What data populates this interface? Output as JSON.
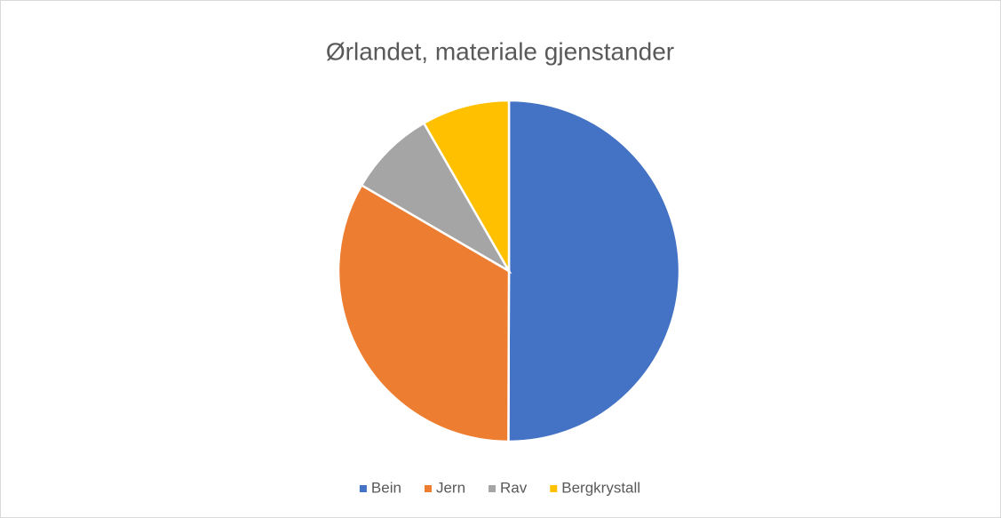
{
  "chart_data": {
    "type": "pie",
    "title": "Ørlandet, materiale gjenstander",
    "categories": [
      "Bein",
      "Jern",
      "Rav",
      "Bergkrystall"
    ],
    "values": [
      50,
      33.3,
      8.3,
      8.3
    ],
    "colors": [
      "#4472c4",
      "#ed7d31",
      "#a5a5a5",
      "#ffc000"
    ],
    "legend": "bottom"
  }
}
